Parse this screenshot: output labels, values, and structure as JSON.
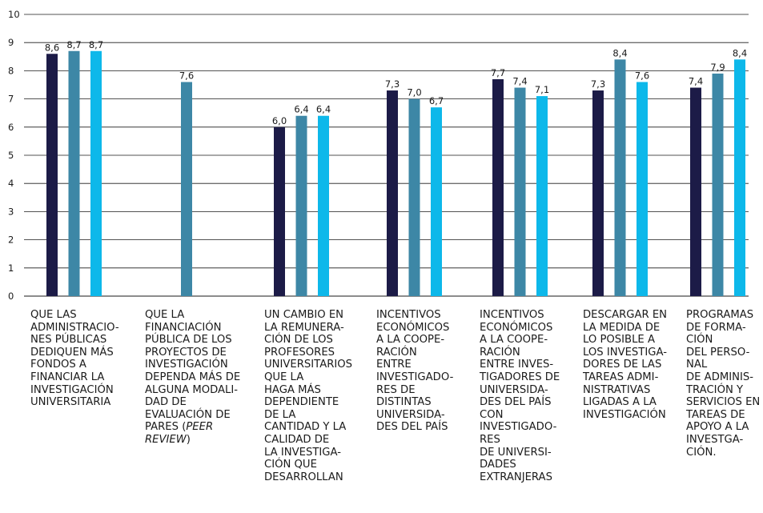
{
  "chart_data": {
    "type": "bar",
    "ylim": [
      0,
      10
    ],
    "yticks": [
      0,
      1,
      2,
      3,
      4,
      5,
      6,
      7,
      8,
      9,
      10
    ],
    "grid": true,
    "categories": [
      "QUE LAS\nADMINISTRACIO-\nNES PÚBLICAS\nDEDIQUEN MÁS\nFONDOS A\nFINANCIAR LA\nINVESTIGACIÓN\nUNIVERSITARIA",
      "QUE LA\nFINANCIACIÓN\nPÚBLICA DE LOS\nPROYECTOS DE\nINVESTIGACIÓN\nDEPENDA MÁS DE\nALGUNA MODALI-\nDAD DE\nEVALUACIÓN DE\nPARES (PEER\nREVIEW)",
      "UN CAMBIO EN\nLA REMUNERA-\nCIÓN DE LOS\nPROFESORES\nUNIVERSITARIOS\nQUE LA\nHAGA MÁS\nDEPENDIENTE\nDE LA\nCANTIDAD Y LA\nCALIDAD DE\nLA INVESTIGA-\nCIÓN QUE\nDESARROLLAN",
      "INCENTIVOS\nECONÓMICOS\nA LA COOPE-\nRACIÓN\nENTRE\nINVESTIGADO-\nRES DE\nDISTINTAS\nUNIVERSIDA-\nDES DEL PAÍS",
      "INCENTIVOS\nECONÓMICOS\nA LA COOPE-\nRACIÓN\nENTRE INVES-\nTIGADORES DE\nUNIVERSIDA-\nDES DEL PAÍS\nCON\nINVESTIGADO-\nRES\nDE UNIVERSI-\nDADES\nEXTRANJERAS",
      "DESCARGAR EN\nLA MEDIDA DE\nLO POSIBLE A\nLOS INVESTIGA-\nDORES DE LAS\nTAREAS ADMI-\nNISTRATIVAS\nLIGADAS A LA\nINVESTIGACIÓN",
      "PROGRAMAS\nDE FORMA-\nCIÓN\nDEL PERSO-\nNAL\nDE ADMINIS-\nTRACIÓN Y\nSERVICIOS EN\nTAREAS DE\nAPOYO A LA\nINVESTGA-\nCIÓN."
    ],
    "series": [
      {
        "color": "#1c1b47",
        "values": [
          8.6,
          null,
          6.0,
          7.3,
          7.7,
          7.3,
          7.4
        ],
        "labels": [
          "8,6",
          "",
          "6,0",
          "7,3",
          "7,7",
          "7,3",
          "7,4"
        ]
      },
      {
        "color": "#3d87a6",
        "values": [
          8.7,
          7.6,
          6.4,
          7.0,
          7.4,
          8.4,
          7.9
        ],
        "labels": [
          "8,7",
          "7,6",
          "6,4",
          "7,0",
          "7,4",
          "8,4",
          "7,9"
        ]
      },
      {
        "color": "#0db8ea",
        "values": [
          8.7,
          null,
          6.4,
          6.7,
          7.1,
          7.6,
          8.4
        ],
        "labels": [
          "8,7",
          "",
          "6,4",
          "6,7",
          "7,1",
          "7,6",
          "8,4"
        ]
      }
    ]
  }
}
